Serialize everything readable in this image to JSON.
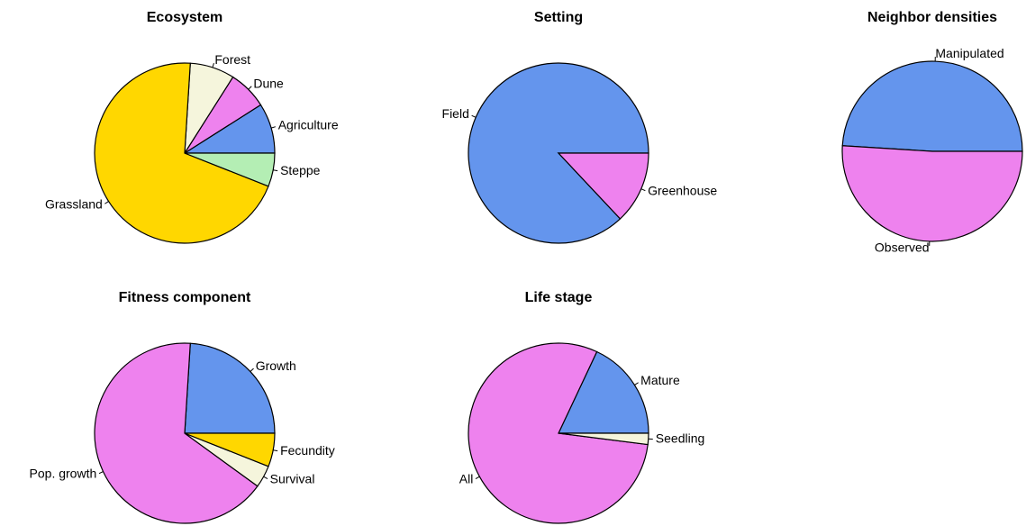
{
  "chart_data": [
    {
      "type": "pie",
      "title": "Ecosystem",
      "categories": [
        "Agriculture",
        "Dune",
        "Forest",
        "Grassland",
        "Steppe"
      ],
      "values": [
        9,
        7,
        8,
        70,
        6
      ],
      "colors": [
        "#6495ed",
        "#ee82ee",
        "#f5f5dc",
        "#ffd700",
        "#b4eeb4"
      ]
    },
    {
      "type": "pie",
      "title": "Setting",
      "categories": [
        "Field",
        "Greenhouse"
      ],
      "values": [
        87,
        13
      ],
      "colors": [
        "#6495ed",
        "#ee82ee"
      ]
    },
    {
      "type": "pie",
      "title": "Neighbor densities",
      "categories": [
        "Manipulated",
        "Observed"
      ],
      "values": [
        49,
        51
      ],
      "colors": [
        "#6495ed",
        "#ee82ee"
      ]
    },
    {
      "type": "pie",
      "title": "Fitness component",
      "categories": [
        "Growth",
        "Pop. growth",
        "Survival",
        "Fecundity"
      ],
      "values": [
        24,
        66,
        4,
        6
      ],
      "colors": [
        "#6495ed",
        "#ee82ee",
        "#f5f5dc",
        "#ffd700"
      ]
    },
    {
      "type": "pie",
      "title": "Life stage",
      "categories": [
        "Mature",
        "All",
        "Seedling"
      ],
      "values": [
        18,
        80,
        2
      ],
      "colors": [
        "#6495ed",
        "#ee82ee",
        "#f5f5dc"
      ]
    }
  ]
}
